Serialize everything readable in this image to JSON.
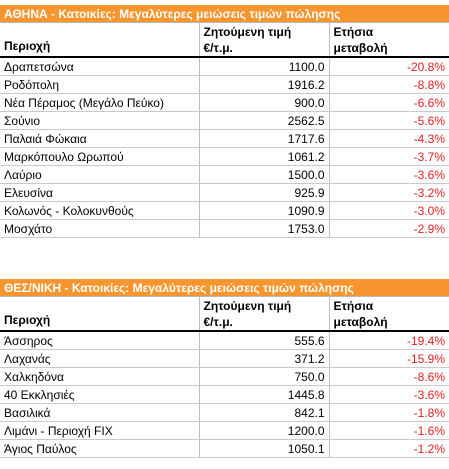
{
  "tables": [
    {
      "title": "ΑΘΗΝΑ - Κατοικίες: Μεγαλύτερες μειώσεις τιμών πώλησης",
      "header": {
        "area": "Περιοχή",
        "price_line1": "Ζητούμενη τιμή",
        "price_line2": "€/τ.μ.",
        "change_line1": "Ετήσια",
        "change_line2": "μεταβολή"
      },
      "rows": [
        {
          "area": "Δραπετσώνα",
          "price": "1100.0",
          "change": "-20.8%"
        },
        {
          "area": "Ροδόπολη",
          "price": "1916.2",
          "change": "-8.8%"
        },
        {
          "area": "Νέα Πέραμος (Μεγάλο Πεύκο)",
          "price": "900.0",
          "change": "-6.6%"
        },
        {
          "area": "Σούνιο",
          "price": "2562.5",
          "change": "-5.6%"
        },
        {
          "area": "Παλαιά Φώκαια",
          "price": "1717.6",
          "change": "-4.3%"
        },
        {
          "area": "Μαρκόπουλο Ωρωπού",
          "price": "1061.2",
          "change": "-3.7%"
        },
        {
          "area": "Λαύριο",
          "price": "1500.0",
          "change": "-3.6%"
        },
        {
          "area": "Ελευσίνα",
          "price": "925.9",
          "change": "-3.2%"
        },
        {
          "area": "Κολωνός - Κολοκυνθούς",
          "price": "1090.9",
          "change": "-3.0%"
        },
        {
          "area": "Μοσχάτο",
          "price": "1753.0",
          "change": "-2.9%"
        }
      ]
    },
    {
      "title": "ΘΕΣ/ΝΙΚΗ - Κατοικίες: Μεγαλύτερες μειώσεις τιμών πώλησης",
      "header": {
        "area": "Περιοχή",
        "price_line1": "Ζητούμενη τιμή",
        "price_line2": "€/τ.μ.",
        "change_line1": "Ετήσια",
        "change_line2": "μεταβολή"
      },
      "rows": [
        {
          "area": "Άσσηρος",
          "price": "555.6",
          "change": "-19.4%"
        },
        {
          "area": "Λαχανάς",
          "price": "371.2",
          "change": "-15.9%"
        },
        {
          "area": "Χαλκηδόνα",
          "price": "750.0",
          "change": "-8.6%"
        },
        {
          "area": "40 Εκκλησιές",
          "price": "1445.8",
          "change": "-3.6%"
        },
        {
          "area": "Βασιλικά",
          "price": "842.1",
          "change": "-1.8%"
        },
        {
          "area": "Λιμάνι - Περιοχή FIX",
          "price": "1200.0",
          "change": "-1.6%"
        },
        {
          "area": "Άγιος Παύλος",
          "price": "1050.1",
          "change": "-1.2%"
        }
      ]
    }
  ],
  "colors": {
    "title_bg": "#f7962e",
    "negative": "#e02020"
  }
}
